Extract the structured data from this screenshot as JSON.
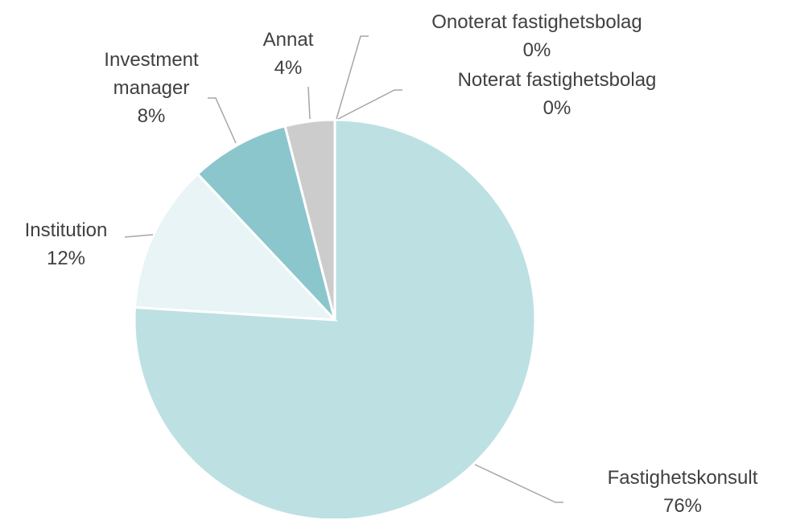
{
  "chart_data": {
    "type": "pie",
    "categories": [
      "Fastighetskonsult",
      "Institution",
      "Investment manager",
      "Annat",
      "Onoterat fastighetsbolag",
      "Noterat fastighetsbolag"
    ],
    "values": [
      76,
      12,
      8,
      4,
      0,
      0
    ],
    "value_labels": [
      "76%",
      "12%",
      "8%",
      "4%",
      "0%",
      "0%"
    ],
    "colors": [
      "#bde0e3",
      "#e8f4f5",
      "#8bc6cd",
      "#cccccc",
      "#a6a6a6",
      "#7f7f7f"
    ]
  }
}
